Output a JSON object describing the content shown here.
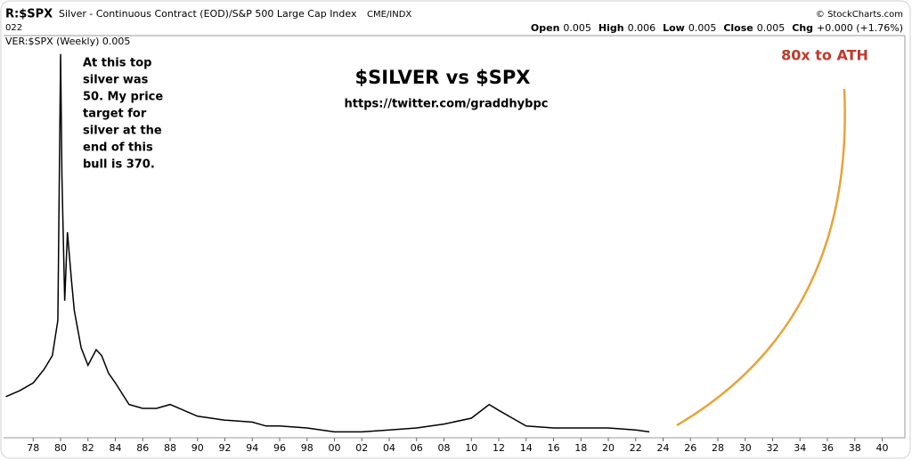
{
  "chart_data": {
    "type": "line",
    "header": {
      "symbol": "R:$SPX",
      "description": "Silver - Continuous Contract (EOD)/S&P 500 Large Cap Index",
      "exchange": "CME/INDX",
      "date": "022",
      "credit": "© StockCharts.com",
      "quote": [
        {
          "label": "Open",
          "value": "0.005"
        },
        {
          "label": "High",
          "value": "0.006"
        },
        {
          "label": "Low",
          "value": "0.005"
        },
        {
          "label": "Close",
          "value": "0.005"
        },
        {
          "label": "Chg",
          "value": "+0.000 (+1.76%)"
        }
      ]
    },
    "title": "$SILVER vs $SPX",
    "subtitle": "https://twitter.com/graddhybpc",
    "annotations": [
      {
        "lines": [
          "At this top",
          "silver was",
          "50. My price",
          "target for",
          "silver at the",
          "end of this",
          "bull is 370."
        ]
      },
      {
        "lines": [
          "80x to ATH"
        ]
      }
    ],
    "x": [
      1976,
      1977,
      1978,
      1978.8,
      1979.4,
      1979.8,
      1980.0,
      1980.1,
      1980.3,
      1980.5,
      1980.8,
      1981,
      1981.5,
      1982,
      1982.6,
      1983,
      1983.5,
      1984,
      1985,
      1986,
      1987,
      1988,
      1989,
      1990,
      1992,
      1994,
      1995,
      1996,
      1998,
      2000,
      2002,
      2004,
      2006,
      2008,
      2010,
      2011.3,
      2012,
      2013,
      2014,
      2016,
      2018,
      2020,
      2022,
      2023
    ],
    "series": [
      {
        "name": "VER:$SPX (Weekly) 0.005",
        "color": "#000000",
        "values": [
          0.021,
          0.024,
          0.028,
          0.035,
          0.042,
          0.06,
          0.196,
          0.133,
          0.07,
          0.105,
          0.08,
          0.065,
          0.046,
          0.037,
          0.045,
          0.042,
          0.033,
          0.028,
          0.017,
          0.015,
          0.015,
          0.017,
          0.014,
          0.011,
          0.009,
          0.008,
          0.006,
          0.006,
          0.005,
          0.003,
          0.003,
          0.004,
          0.005,
          0.007,
          0.01,
          0.017,
          0.014,
          0.01,
          0.006,
          0.005,
          0.005,
          0.005,
          0.004,
          0.003
        ]
      }
    ],
    "xlim": [
      1975.9,
      2041.4
    ],
    "ylim": [
      0,
      0.2
    ],
    "xticks": [
      {
        "value": 1978,
        "label": "78"
      },
      {
        "value": 1980,
        "label": "80"
      },
      {
        "value": 1982,
        "label": "82"
      },
      {
        "value": 1984,
        "label": "84"
      },
      {
        "value": 1986,
        "label": "86"
      },
      {
        "value": 1988,
        "label": "88"
      },
      {
        "value": 1990,
        "label": "90"
      },
      {
        "value": 1992,
        "label": "92"
      },
      {
        "value": 1994,
        "label": "94"
      },
      {
        "value": 1996,
        "label": "96"
      },
      {
        "value": 1998,
        "label": "98"
      },
      {
        "value": 2000,
        "label": "00"
      },
      {
        "value": 2002,
        "label": "02"
      },
      {
        "value": 2004,
        "label": "04"
      },
      {
        "value": 2006,
        "label": "06"
      },
      {
        "value": 2008,
        "label": "08"
      },
      {
        "value": 2010,
        "label": "10"
      },
      {
        "value": 2012,
        "label": "12"
      },
      {
        "value": 2014,
        "label": "14"
      },
      {
        "value": 2016,
        "label": "16"
      },
      {
        "value": 2018,
        "label": "18"
      },
      {
        "value": 2020,
        "label": "20"
      },
      {
        "value": 2022,
        "label": "22"
      },
      {
        "value": 2024,
        "label": "24"
      },
      {
        "value": 2026,
        "label": "26"
      },
      {
        "value": 2028,
        "label": "28"
      },
      {
        "value": 2030,
        "label": "30"
      },
      {
        "value": 2032,
        "label": "32"
      },
      {
        "value": 2034,
        "label": "34"
      },
      {
        "value": 2036,
        "label": "36"
      },
      {
        "value": 2038,
        "label": "38"
      },
      {
        "value": 2040,
        "label": "40"
      }
    ]
  }
}
